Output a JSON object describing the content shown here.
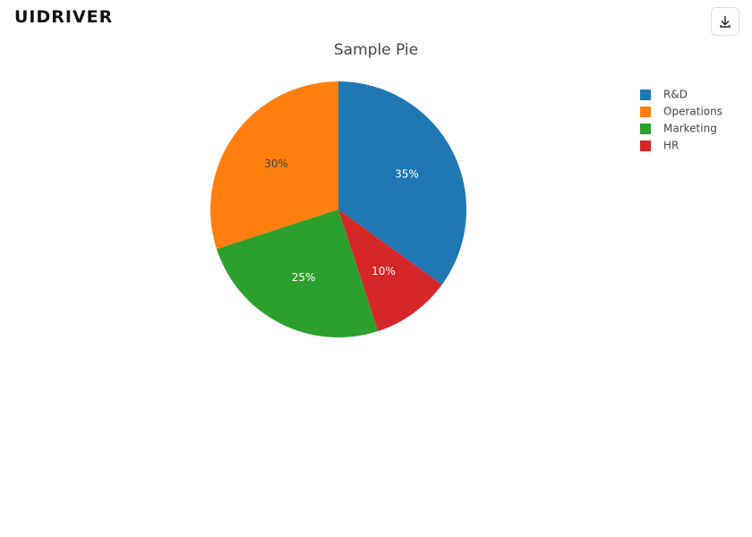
{
  "logo": "UIDRIVER",
  "chart_data": {
    "type": "pie",
    "title": "Sample Pie",
    "categories": [
      "R&D",
      "Operations",
      "Marketing",
      "HR"
    ],
    "values": [
      35,
      30,
      25,
      10
    ],
    "value_labels": [
      "35%",
      "30%",
      "25%",
      "10%"
    ],
    "colors": [
      "#1f77b4",
      "#ff7f0e",
      "#2ca02c",
      "#d62728"
    ],
    "legend": "top-right"
  }
}
